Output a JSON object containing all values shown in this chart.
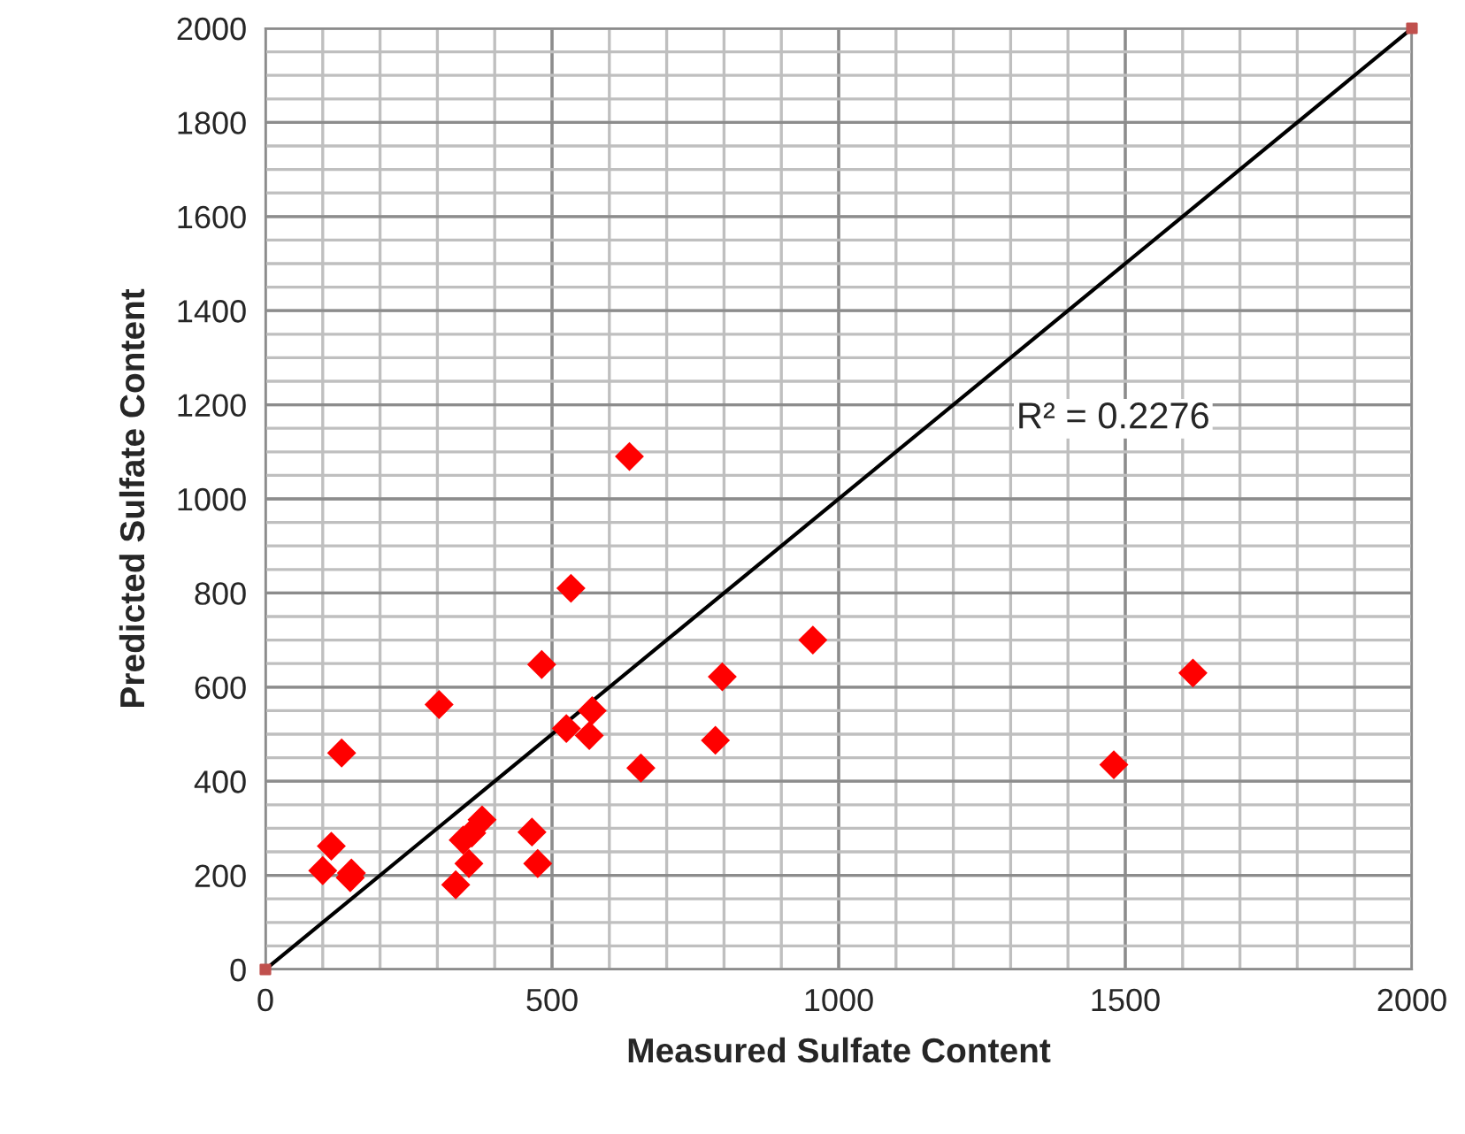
{
  "chart_data": {
    "type": "scatter",
    "xlabel": "Measured Sulfate Content",
    "ylabel": "Predicted Sulfate Content",
    "annotations": [
      "R² = 0.2276"
    ],
    "series": [
      {
        "color": "#ff0000",
        "marker": "diamond",
        "x": [
          635,
          533,
          482,
          303,
          133,
          955,
          797,
          1618,
          1480,
          785,
          655,
          570,
          525,
          565,
          465,
          475,
          378,
          360,
          345,
          355,
          332,
          115,
          100,
          150,
          148
        ],
        "values": [
          1090,
          810,
          648,
          563,
          460,
          700,
          622,
          630,
          435,
          487,
          428,
          550,
          512,
          497,
          292,
          225,
          318,
          290,
          275,
          225,
          180,
          262,
          210,
          205,
          195
        ]
      },
      {
        "type": "line",
        "color": "#000000",
        "marker": "square",
        "colors": [
          "#c0504d",
          "#c0504d"
        ],
        "x": [
          0,
          2000
        ],
        "values": [
          0,
          2000
        ]
      }
    ],
    "xlim": [
      0,
      2000
    ],
    "xticks": [
      0,
      500,
      1000,
      1500,
      2000
    ],
    "ylim": [
      0,
      2000
    ],
    "yticks": [
      0,
      200,
      400,
      600,
      800,
      1000,
      1200,
      1400,
      1600,
      1800,
      2000
    ],
    "grid": true,
    "legend": false
  }
}
